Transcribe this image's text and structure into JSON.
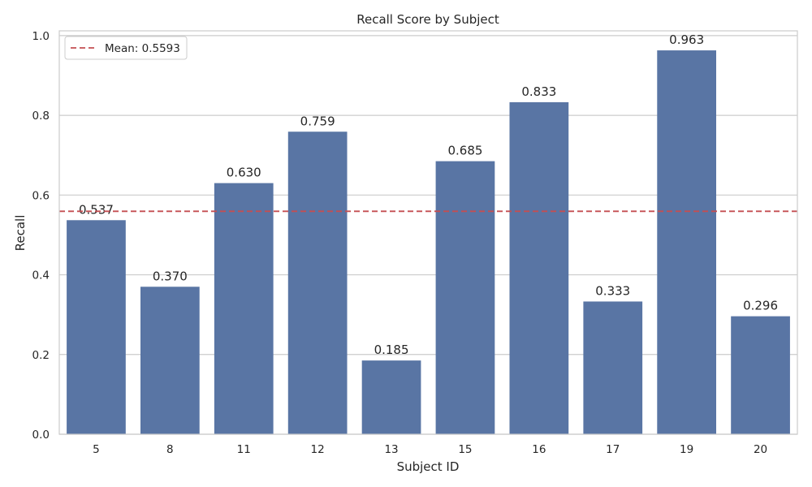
{
  "chart_data": {
    "type": "bar",
    "title": "Recall Score by Subject",
    "xlabel": "Subject ID",
    "ylabel": "Recall",
    "categories": [
      "5",
      "8",
      "11",
      "12",
      "13",
      "15",
      "16",
      "17",
      "19",
      "20"
    ],
    "values": [
      0.537,
      0.37,
      0.63,
      0.759,
      0.185,
      0.685,
      0.833,
      0.333,
      0.963,
      0.296
    ],
    "value_labels": [
      "0.537",
      "0.370",
      "0.630",
      "0.759",
      "0.185",
      "0.685",
      "0.833",
      "0.333",
      "0.963",
      "0.296"
    ],
    "ylim": [
      0,
      1.0
    ],
    "yticks": [
      0.0,
      0.2,
      0.4,
      0.6,
      0.8,
      1.0
    ],
    "ytick_labels": [
      "0.0",
      "0.2",
      "0.4",
      "0.6",
      "0.8",
      "1.0"
    ],
    "mean_line": {
      "value": 0.5593,
      "label": "Mean: 0.5593",
      "color": "#c44e52",
      "style": "dashed"
    },
    "legend": {
      "placement": "top-left",
      "entries": [
        "Mean: 0.5593"
      ]
    },
    "grid": {
      "y": true,
      "x": false,
      "color": "#cccccc"
    },
    "bar_color": "#5975a4"
  }
}
